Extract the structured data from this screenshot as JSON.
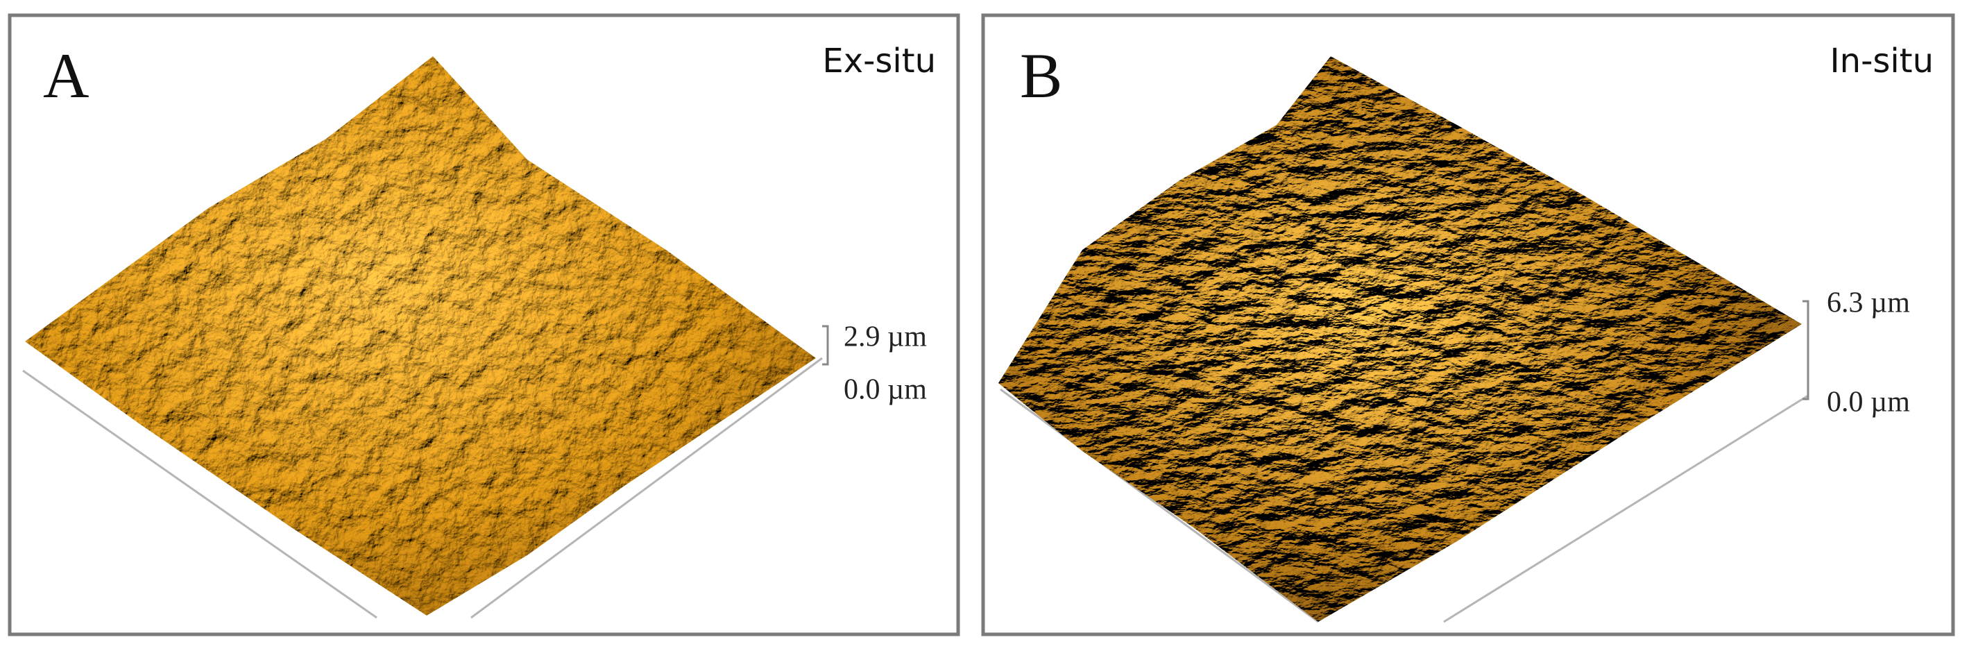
{
  "panels": [
    {
      "label": "A",
      "title": "Ex-situ",
      "scale": {
        "top": "2.9 µm",
        "bottom": "0.0 µm"
      }
    },
    {
      "label": "B",
      "title": "In-situ",
      "scale": {
        "top": "6.3 µm",
        "bottom": "0.0 µm"
      }
    }
  ]
}
